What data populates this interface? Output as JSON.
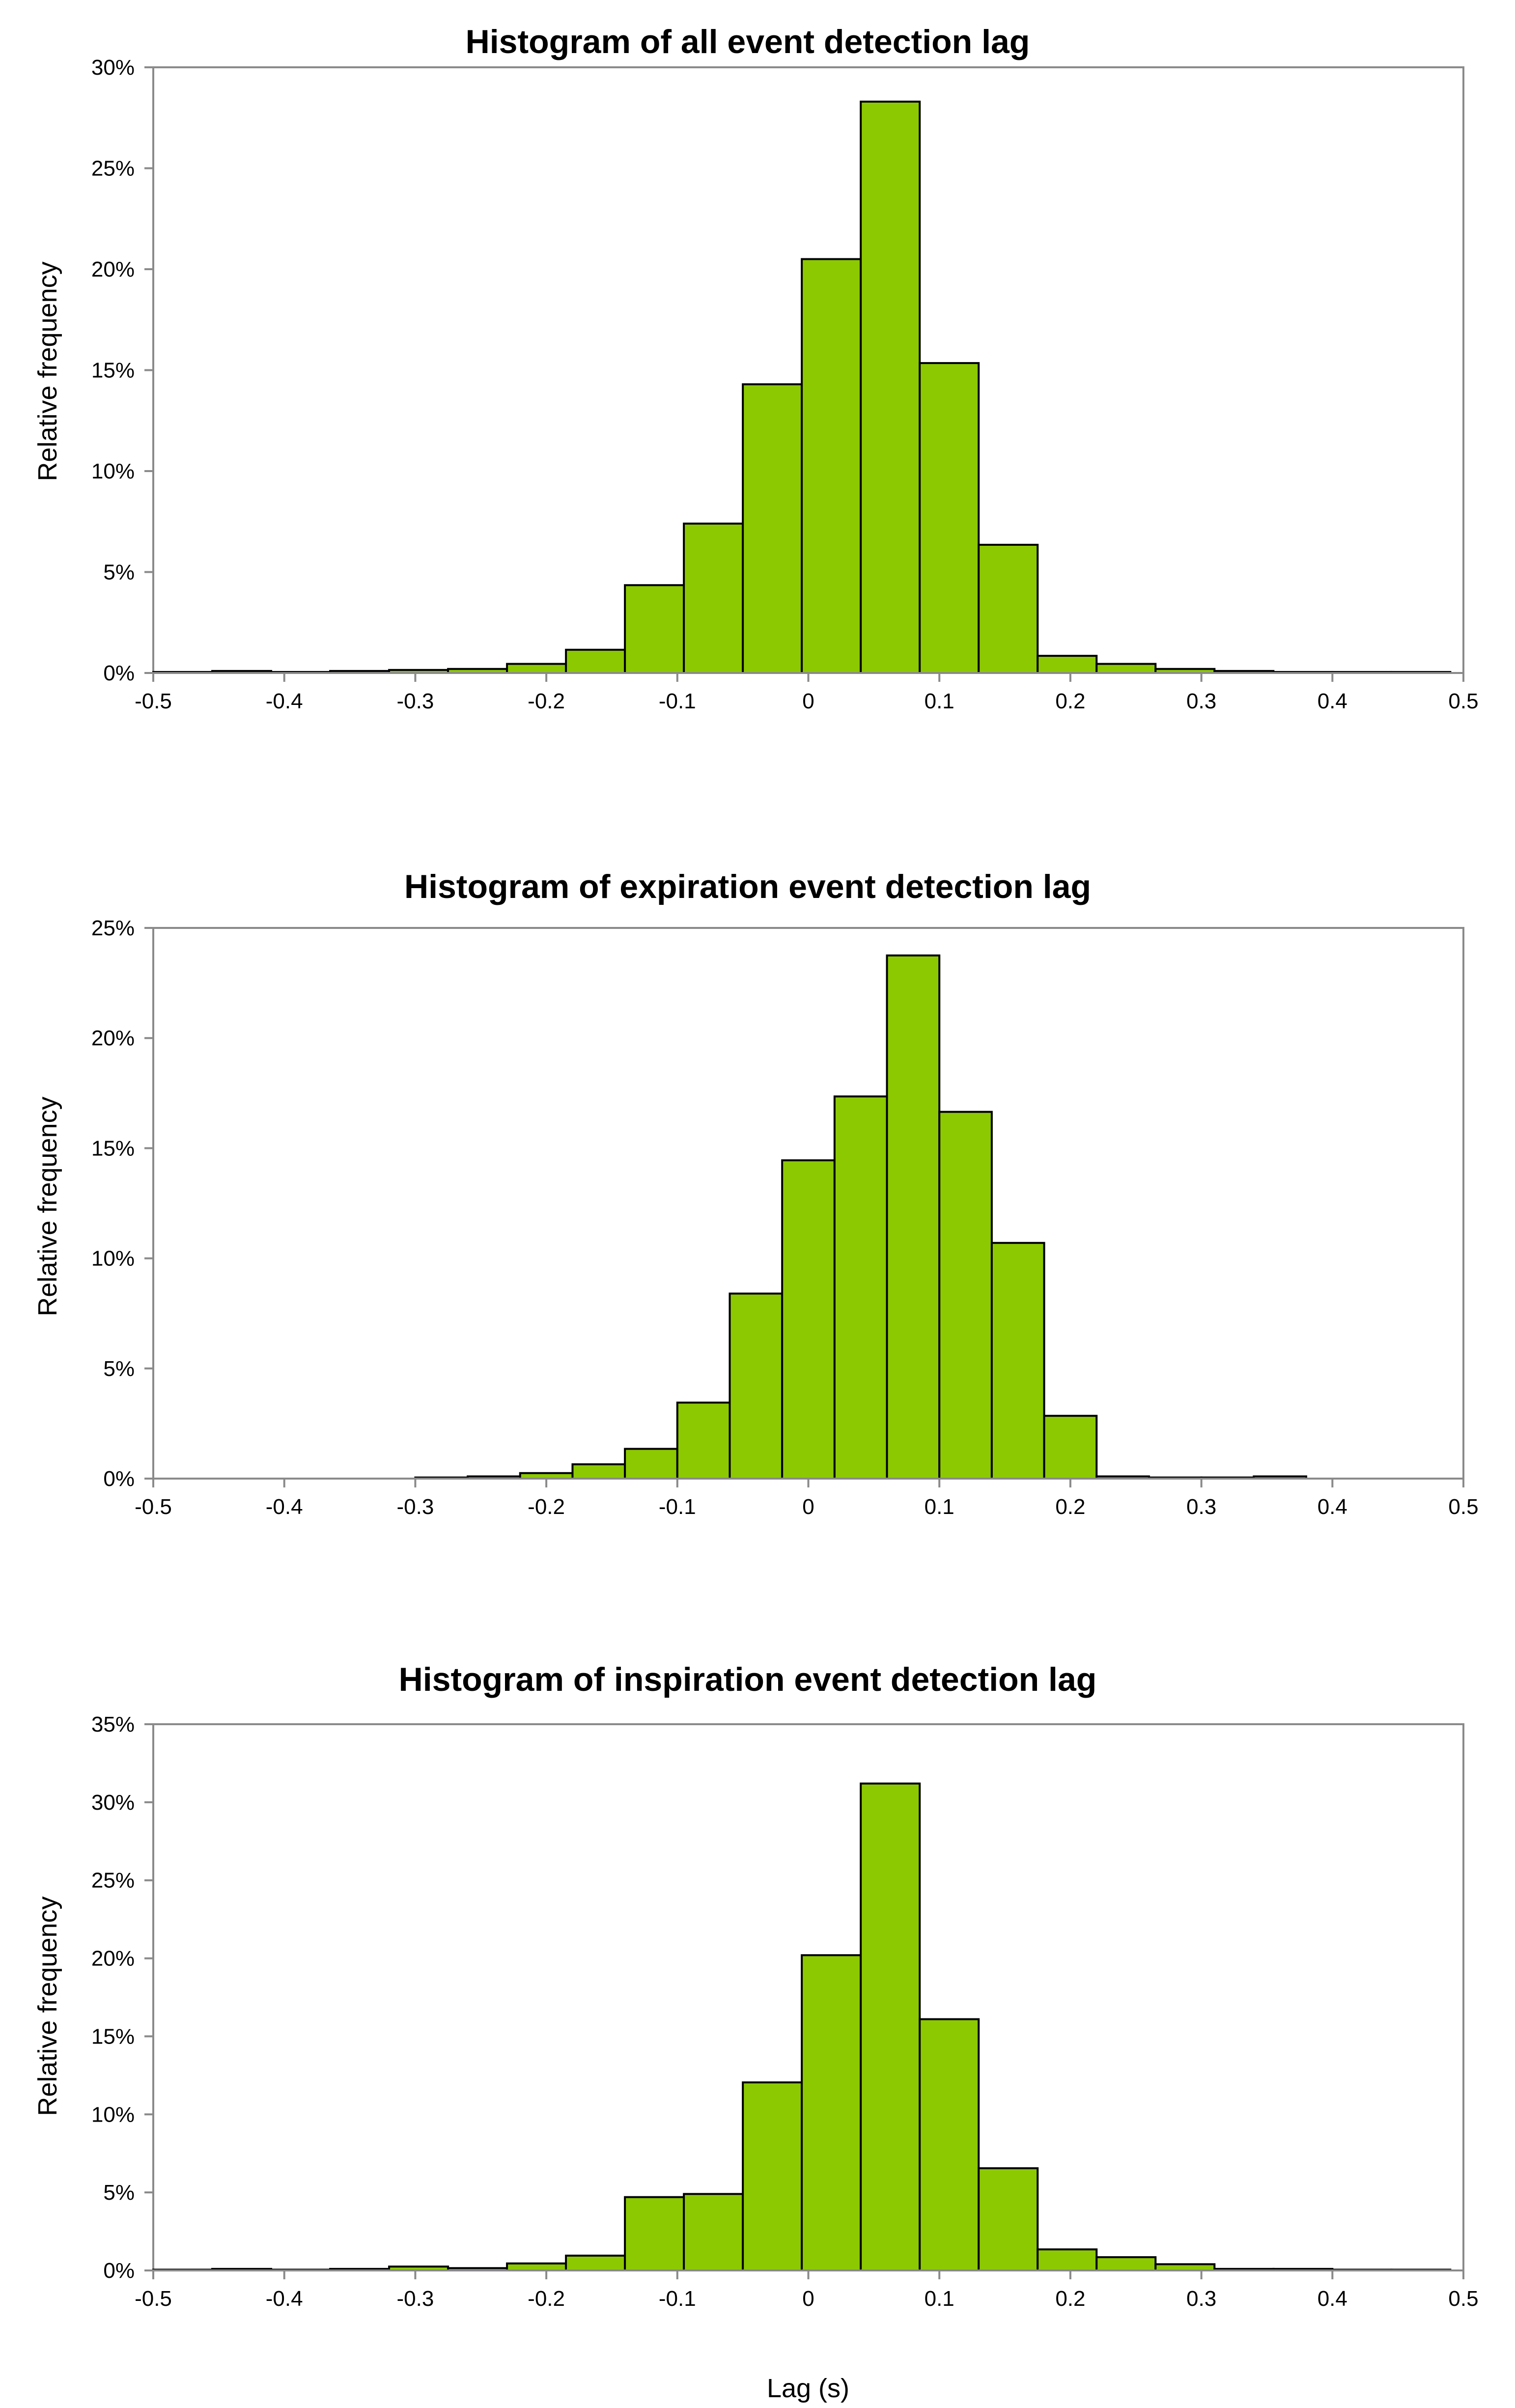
{
  "chart_data": [
    {
      "type": "bar",
      "title": "Histogram of all event detection lag",
      "xlabel": "",
      "ylabel": "Relative frequency",
      "xlim": [
        -0.5,
        0.5
      ],
      "ylim": [
        0,
        30
      ],
      "x_ticks": [
        "-0.5",
        "-0.4",
        "-0.3",
        "-0.2",
        "-0.1",
        "0",
        "0.1",
        "0.2",
        "0.3",
        "0.4",
        "0.5"
      ],
      "y_ticks": [
        "0%",
        "5%",
        "10%",
        "15%",
        "20%",
        "25%",
        "30%"
      ],
      "grid": false,
      "bin_start": -0.5,
      "bin_width": 0.045,
      "values": [
        0.05,
        0.1,
        0.05,
        0.1,
        0.15,
        0.2,
        0.45,
        1.15,
        4.35,
        7.4,
        14.3,
        20.5,
        28.3,
        15.35,
        6.35,
        0.85,
        0.45,
        0.2,
        0.1,
        0.05,
        0.05,
        0.05
      ]
    },
    {
      "type": "bar",
      "title": "Histogram of expiration event detection lag",
      "xlabel": "",
      "ylabel": "Relative frequency",
      "xlim": [
        -0.5,
        0.5
      ],
      "ylim": [
        0,
        25
      ],
      "x_ticks": [
        "-0.5",
        "-0.4",
        "-0.3",
        "-0.2",
        "-0.1",
        "0",
        "0.1",
        "0.2",
        "0.3",
        "0.4",
        "0.5"
      ],
      "y_ticks": [
        "0%",
        "5%",
        "10%",
        "15%",
        "20%",
        "25%"
      ],
      "grid": false,
      "bin_start": -0.5,
      "bin_width": 0.04,
      "values": [
        0,
        0,
        0,
        0,
        0,
        0.05,
        0.1,
        0.25,
        0.65,
        1.35,
        3.45,
        8.4,
        14.45,
        17.35,
        23.75,
        16.65,
        10.7,
        2.85,
        0.1,
        0.05,
        0.05,
        0.1,
        0,
        0,
        0
      ]
    },
    {
      "type": "bar",
      "title": "Histogram of inspiration event detection lag",
      "xlabel": "Lag (s)",
      "ylabel": "Relative frequency",
      "xlim": [
        -0.5,
        0.5
      ],
      "ylim": [
        0,
        35
      ],
      "x_ticks": [
        "-0.5",
        "-0.4",
        "-0.3",
        "-0.2",
        "-0.1",
        "0",
        "0.1",
        "0.2",
        "0.3",
        "0.4",
        "0.5"
      ],
      "y_ticks": [
        "0%",
        "5%",
        "10%",
        "15%",
        "20%",
        "25%",
        "30%",
        "35%"
      ],
      "grid": false,
      "bin_start": -0.5,
      "bin_width": 0.045,
      "values": [
        0.05,
        0.1,
        0.05,
        0.1,
        0.25,
        0.15,
        0.45,
        0.95,
        4.7,
        4.9,
        12.05,
        20.2,
        31.2,
        16.1,
        6.55,
        1.35,
        0.85,
        0.4,
        0.1,
        0.1,
        0.05,
        0.05
      ]
    }
  ]
}
